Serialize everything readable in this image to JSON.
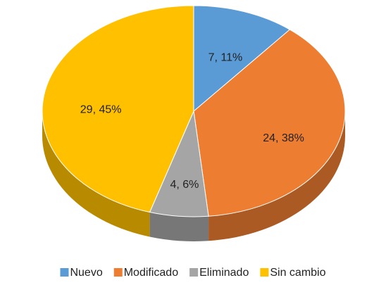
{
  "chart_data": {
    "type": "pie",
    "categories": [
      "Nuevo",
      "Modificado",
      "Eliminado",
      "Sin cambio"
    ],
    "values": [
      7,
      24,
      4,
      29
    ],
    "value_labels": [
      "7, 11%",
      "24, 38%",
      "4, 6%",
      "29, 45%"
    ],
    "colors": [
      "#5b9bd5",
      "#ed7d31",
      "#a5a5a5",
      "#ffc000"
    ],
    "legend": "bottom"
  }
}
